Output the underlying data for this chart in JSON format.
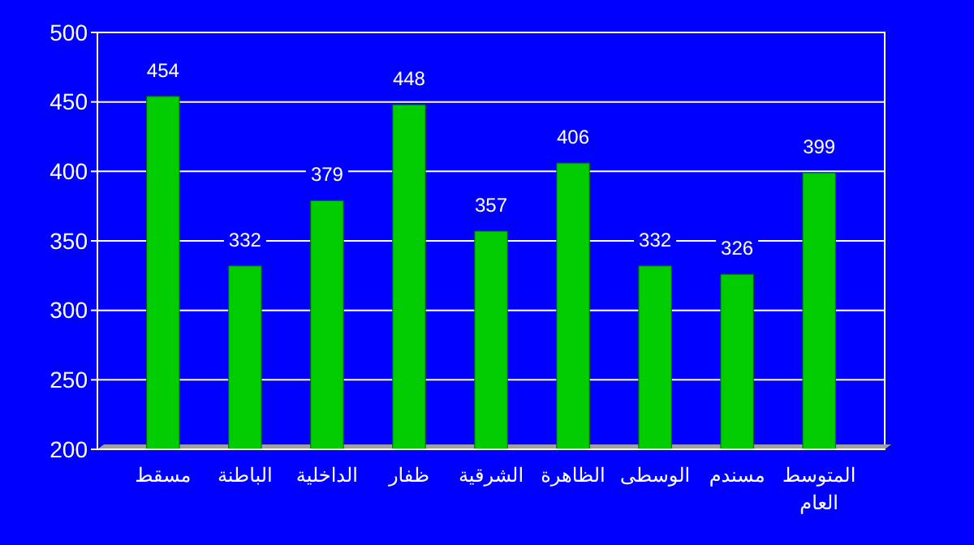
{
  "chart_data": {
    "type": "bar",
    "categories": [
      "مسقط",
      "الباطنة",
      "الداخلية",
      "ظفار",
      "الشرقية",
      "الظاهرة",
      "الوسطى",
      "مسندم",
      "المتوسط العام"
    ],
    "values": [
      454,
      332,
      379,
      448,
      357,
      406,
      332,
      326,
      399
    ],
    "color": "#00cc00",
    "ylim": [
      200,
      500
    ],
    "yticks": [
      200,
      250,
      300,
      350,
      400,
      450,
      500
    ],
    "grid": "y",
    "data_labels": true
  }
}
